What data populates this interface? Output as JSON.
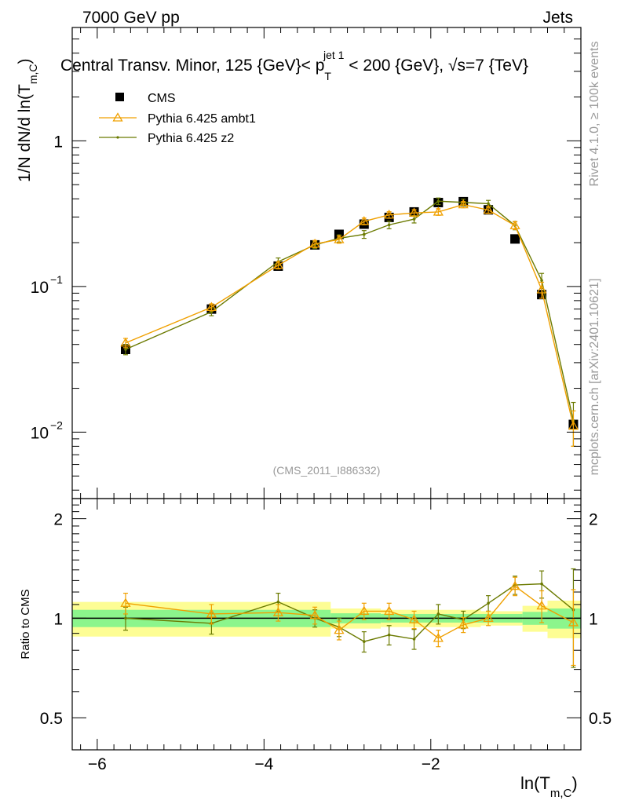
{
  "header": {
    "left": "7000 GeV pp",
    "right": "Jets",
    "title": "Central Transv. Minor, 125 {GeV}< p",
    "title_sup": "jet 1",
    "title_sub": "T",
    "title_tail": " < 200 {GeV}, √s=7 {TeV}",
    "ref": "(CMS_2011_I886332)",
    "side_top": "Rivet 4.1.0, ≥ 100k events",
    "side_bottom": "mcplots.cern.ch [arXiv:2401.10621]"
  },
  "axes": {
    "ylabel_main": "1/N   dN/d ln(T",
    "ylabel_main_sub": "m,C",
    "ylabel_main_close": ")",
    "ylabel_ratio": "Ratio to CMS",
    "xlabel": "ln(T",
    "xlabel_sub": "m,C",
    "xlabel_close": ")",
    "x_ticks": [
      "−6",
      "−4",
      "−2"
    ],
    "y_main_ticks": [
      "1",
      "10",
      "10"
    ],
    "y_main_exps": [
      "",
      "−1",
      "−2"
    ],
    "y_ratio_ticks": [
      "2",
      "1",
      "0.5"
    ]
  },
  "legend": [
    "CMS",
    "Pythia 6.425 ambt1",
    "Pythia 6.425 z2"
  ],
  "colors": {
    "data": "#000000",
    "ambt1": "#f0a000",
    "z2": "#6b7a00",
    "band_inner": "#8cf58c",
    "band_outer": "#fdfd94"
  },
  "chart_data": {
    "type": "line",
    "xlim": [
      -6.3,
      -0.2
    ],
    "ylim_main": [
      0.0035,
      6.0
    ],
    "ylim_ratio": [
      0.4,
      2.3
    ],
    "yscale_main": "log",
    "yscale_ratio": "log",
    "x": [
      -5.66,
      -4.63,
      -3.83,
      -3.39,
      -3.1,
      -2.8,
      -2.5,
      -2.2,
      -1.91,
      -1.61,
      -1.31,
      -0.99,
      -0.67,
      -0.29
    ],
    "series": [
      {
        "name": "CMS",
        "values": [
          0.037,
          0.07,
          0.138,
          0.193,
          0.228,
          0.268,
          0.298,
          0.325,
          0.377,
          0.382,
          0.336,
          0.212,
          0.088,
          0.0113
        ],
        "errors": [
          0.003,
          0.004,
          0.006,
          0.008,
          0.009,
          0.01,
          0.011,
          0.012,
          0.013,
          0.013,
          0.012,
          0.008,
          0.005,
          0.0012
        ]
      },
      {
        "name": "Pythia 6.425 ambt1",
        "values": [
          0.041,
          0.072,
          0.14,
          0.196,
          0.21,
          0.28,
          0.31,
          0.32,
          0.325,
          0.365,
          0.335,
          0.262,
          0.095,
          0.011
        ],
        "errors": [
          0.003,
          0.004,
          0.008,
          0.011,
          0.012,
          0.015,
          0.016,
          0.017,
          0.017,
          0.018,
          0.018,
          0.016,
          0.012,
          0.003
        ]
      },
      {
        "name": "Pythia 6.425 z2",
        "values": [
          0.037,
          0.067,
          0.148,
          0.193,
          0.214,
          0.228,
          0.265,
          0.29,
          0.385,
          0.378,
          0.37,
          0.262,
          0.11,
          0.012
        ],
        "errors": [
          0.003,
          0.004,
          0.009,
          0.011,
          0.012,
          0.014,
          0.016,
          0.017,
          0.02,
          0.02,
          0.02,
          0.017,
          0.013,
          0.004
        ]
      }
    ],
    "ratio_series": [
      {
        "name": "Pythia 6.425 ambt1",
        "values": [
          1.11,
          1.03,
          1.04,
          1.02,
          0.92,
          1.05,
          1.05,
          0.99,
          0.87,
          0.955,
          1.0,
          1.25,
          1.09,
          0.97
        ],
        "errors": [
          0.08,
          0.07,
          0.06,
          0.06,
          0.06,
          0.06,
          0.06,
          0.06,
          0.05,
          0.05,
          0.05,
          0.08,
          0.12,
          0.25
        ]
      },
      {
        "name": "Pythia 6.425 z2",
        "values": [
          1.0,
          0.965,
          1.12,
          1.0,
          0.94,
          0.85,
          0.89,
          0.865,
          1.03,
          0.99,
          1.11,
          1.26,
          1.27,
          1.06
        ],
        "errors": [
          0.08,
          0.07,
          0.07,
          0.06,
          0.06,
          0.06,
          0.06,
          0.06,
          0.07,
          0.06,
          0.06,
          0.08,
          0.12,
          0.35
        ]
      }
    ],
    "band_edges": [
      -6.3,
      -3.2,
      -2.6,
      -1.4,
      -0.9,
      -0.6,
      -0.2
    ],
    "band_inner": [
      0.06,
      0.035,
      0.03,
      0.03,
      0.045,
      0.07
    ],
    "band_outer": [
      0.12,
      0.07,
      0.06,
      0.05,
      0.09,
      0.13
    ]
  }
}
